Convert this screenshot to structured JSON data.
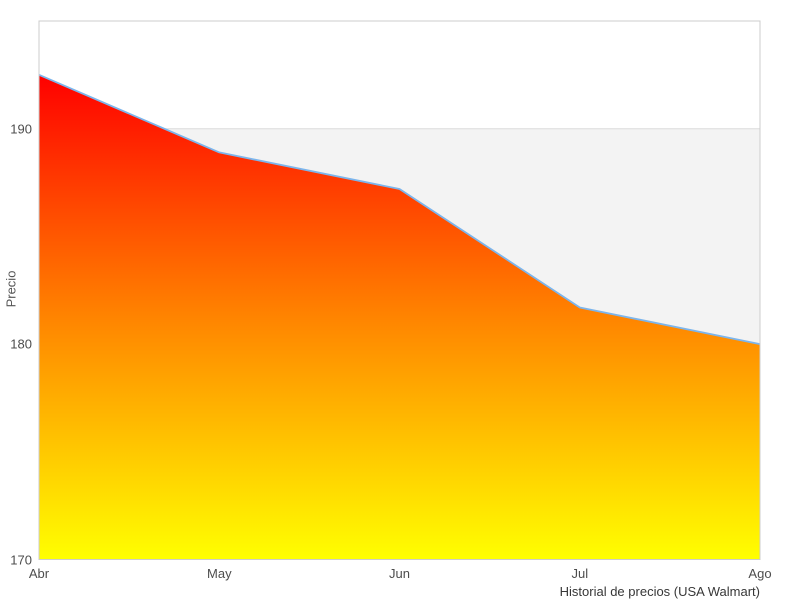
{
  "chart_data": {
    "type": "area",
    "title": "Historial de precios (USA Walmart)",
    "xlabel": "",
    "ylabel": "Precio",
    "x": [
      "Abr",
      "May",
      "Jun",
      "Jul",
      "Ago"
    ],
    "values": [
      192.5,
      188.9,
      187.2,
      181.7,
      180.0
    ],
    "ylim": [
      170,
      195
    ],
    "y_ticks": [
      190,
      180,
      170
    ],
    "gridlines": [
      190
    ],
    "band": {
      "from": 180,
      "to": 190
    },
    "legend": "none",
    "grid": "single horizontal gridline at 190 with alternating gray band 180-190",
    "colors": {
      "line": "#7cb5ec",
      "fill_gradient_top": "#ff0000",
      "fill_gradient_mid": "#ff8400",
      "fill_gradient_bottom": "#ffff00",
      "band": "#f3f3f3",
      "gridline": "#dcdcdc",
      "plot_border": "#cccccc",
      "tick_label": "#4d4d4d",
      "axis_title": "#555555",
      "title_text": "#373737",
      "background": "#ffffff"
    }
  }
}
